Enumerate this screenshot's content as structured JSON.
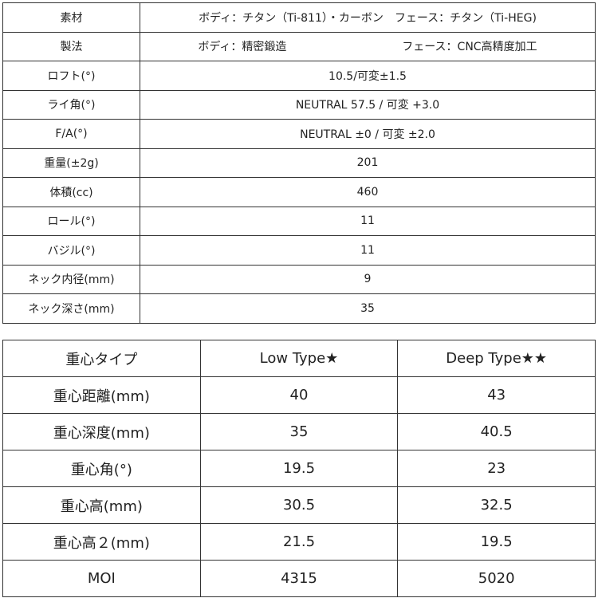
{
  "spec_table": {
    "rows": [
      {
        "label": "素材",
        "value": "ボディ：チタン（Ti-811）・カーボン　フェース：チタン（Ti-HEG)"
      },
      {
        "label": "製法",
        "value_body": "ボディ：精密鍛造",
        "value_face": "フェース：CNC高精度加工"
      },
      {
        "label": "ロフト(°)",
        "value": "10.5/可変±1.5"
      },
      {
        "label": "ライ角(°)",
        "value": "NEUTRAL 57.5 / 可変 +3.0"
      },
      {
        "label": "F/A(°)",
        "value": "NEUTRAL ±0 / 可変 ±2.0"
      },
      {
        "label": "重量(±2g)",
        "value": "201"
      },
      {
        "label": "体積(cc)",
        "value": "460"
      },
      {
        "label": "ロール(°)",
        "value": "11"
      },
      {
        "label": "バジル(°)",
        "value": "11"
      },
      {
        "label": "ネック内径(mm)",
        "value": "9"
      },
      {
        "label": "ネック深さ(mm)",
        "value": "35"
      }
    ]
  },
  "cg_table": {
    "headers": [
      "重心タイプ",
      "Low Type★",
      "Deep Type★★"
    ],
    "rows": [
      [
        "重心距離(mm)",
        "40",
        "43"
      ],
      [
        "重心深度(mm)",
        "35",
        "40.5"
      ],
      [
        "重心角(°)",
        "19.5",
        "23"
      ],
      [
        "重心高(mm)",
        "30.5",
        "32.5"
      ],
      [
        "重心高２(mm)",
        "21.5",
        "19.5"
      ],
      [
        "MOI",
        "4315",
        "5020"
      ]
    ]
  }
}
